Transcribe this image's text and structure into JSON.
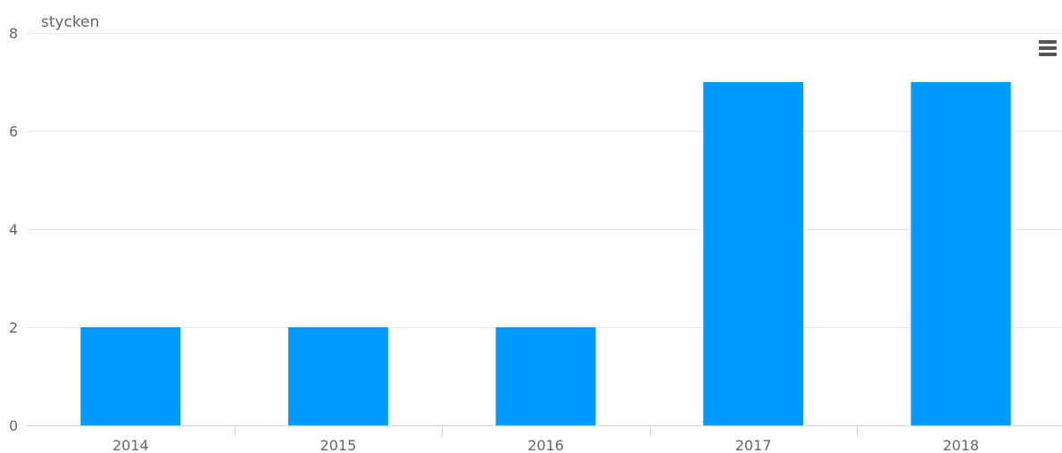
{
  "chart_data": {
    "type": "bar",
    "categories": [
      "2014",
      "2015",
      "2016",
      "2017",
      "2018"
    ],
    "values": [
      2,
      2,
      2,
      7,
      7
    ],
    "ylabel": "stycken",
    "ylim": [
      0,
      8
    ],
    "yticks": [
      0,
      2,
      4,
      6,
      8
    ],
    "grid": true,
    "legend": "none",
    "bar_color": "#0099ff",
    "grid_color": "#e6e6e6",
    "axis_color": "#ccd6eb",
    "text_color": "#666666"
  },
  "menu": {
    "icon": "hamburger-menu-icon"
  }
}
